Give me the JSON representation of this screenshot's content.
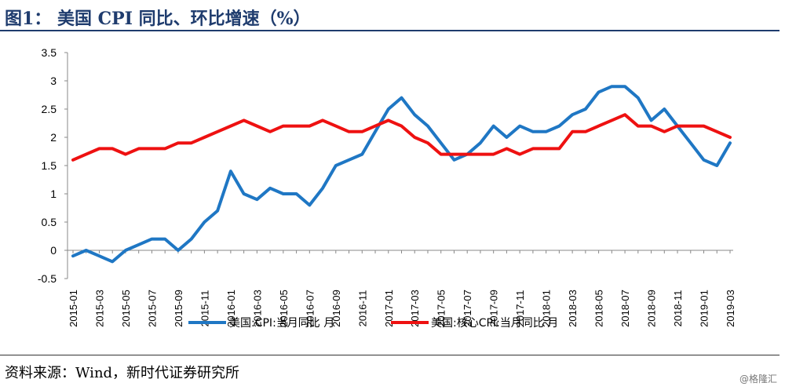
{
  "header": {
    "title": "图1：  美国 CPI 同比、环比增速（%）"
  },
  "footer": {
    "source": "资料来源：Wind，新时代证券研究所",
    "watermark": "@格隆汇"
  },
  "chart_data": {
    "type": "line",
    "title": "",
    "xlabel": "",
    "ylabel": "",
    "ylim": [
      -0.5,
      3.5
    ],
    "yticks": [
      "3.5",
      "3",
      "2.5",
      "2",
      "1.5",
      "1",
      "0.5",
      "0",
      "-0.5"
    ],
    "grid": false,
    "legend_position": "bottom",
    "x": [
      "2015-01",
      "2015-02",
      "2015-03",
      "2015-04",
      "2015-05",
      "2015-06",
      "2015-07",
      "2015-08",
      "2015-09",
      "2015-10",
      "2015-11",
      "2015-12",
      "2016-01",
      "2016-02",
      "2016-03",
      "2016-04",
      "2016-05",
      "2016-06",
      "2016-07",
      "2016-08",
      "2016-09",
      "2016-10",
      "2016-11",
      "2016-12",
      "2017-01",
      "2017-02",
      "2017-03",
      "2017-04",
      "2017-05",
      "2017-06",
      "2017-07",
      "2017-08",
      "2017-09",
      "2017-10",
      "2017-11",
      "2017-12",
      "2018-01",
      "2018-02",
      "2018-03",
      "2018-04",
      "2018-05",
      "2018-06",
      "2018-07",
      "2018-08",
      "2018-09",
      "2018-10",
      "2018-11",
      "2018-12",
      "2019-01",
      "2019-02",
      "2019-03"
    ],
    "x_tick_labels": [
      "2015-01",
      "2015-03",
      "2015-05",
      "2015-07",
      "2015-09",
      "2015-11",
      "2016-01",
      "2016-03",
      "2016-05",
      "2016-07",
      "2016-09",
      "2016-11",
      "2017-01",
      "2017-03",
      "2017-05",
      "2017-07",
      "2017-09",
      "2017-11",
      "2018-01",
      "2018-03",
      "2018-05",
      "2018-07",
      "2018-09",
      "2018-11",
      "2019-01",
      "2019-03"
    ],
    "series": [
      {
        "name": "美国:CPI:当月同比 月",
        "color": "#1f77c4",
        "values": [
          -0.1,
          0.0,
          -0.1,
          -0.2,
          0.0,
          0.1,
          0.2,
          0.2,
          0.0,
          0.2,
          0.5,
          0.7,
          1.4,
          1.0,
          0.9,
          1.1,
          1.0,
          1.0,
          0.8,
          1.1,
          1.5,
          1.6,
          1.7,
          2.1,
          2.5,
          2.7,
          2.4,
          2.2,
          1.9,
          1.6,
          1.7,
          1.9,
          2.2,
          2.0,
          2.2,
          2.1,
          2.1,
          2.2,
          2.4,
          2.5,
          2.8,
          2.9,
          2.9,
          2.7,
          2.3,
          2.5,
          2.2,
          1.9,
          1.6,
          1.5,
          1.9
        ]
      },
      {
        "name": "美国:核心CPI:当月同比 月",
        "color": "#ee1111",
        "values": [
          1.6,
          1.7,
          1.8,
          1.8,
          1.7,
          1.8,
          1.8,
          1.8,
          1.9,
          1.9,
          2.0,
          2.1,
          2.2,
          2.3,
          2.2,
          2.1,
          2.2,
          2.2,
          2.2,
          2.3,
          2.2,
          2.1,
          2.1,
          2.2,
          2.3,
          2.2,
          2.0,
          1.9,
          1.7,
          1.7,
          1.7,
          1.7,
          1.7,
          1.8,
          1.7,
          1.8,
          1.8,
          1.8,
          2.1,
          2.1,
          2.2,
          2.3,
          2.4,
          2.2,
          2.2,
          2.1,
          2.2,
          2.2,
          2.2,
          2.1,
          2.0
        ]
      }
    ]
  }
}
